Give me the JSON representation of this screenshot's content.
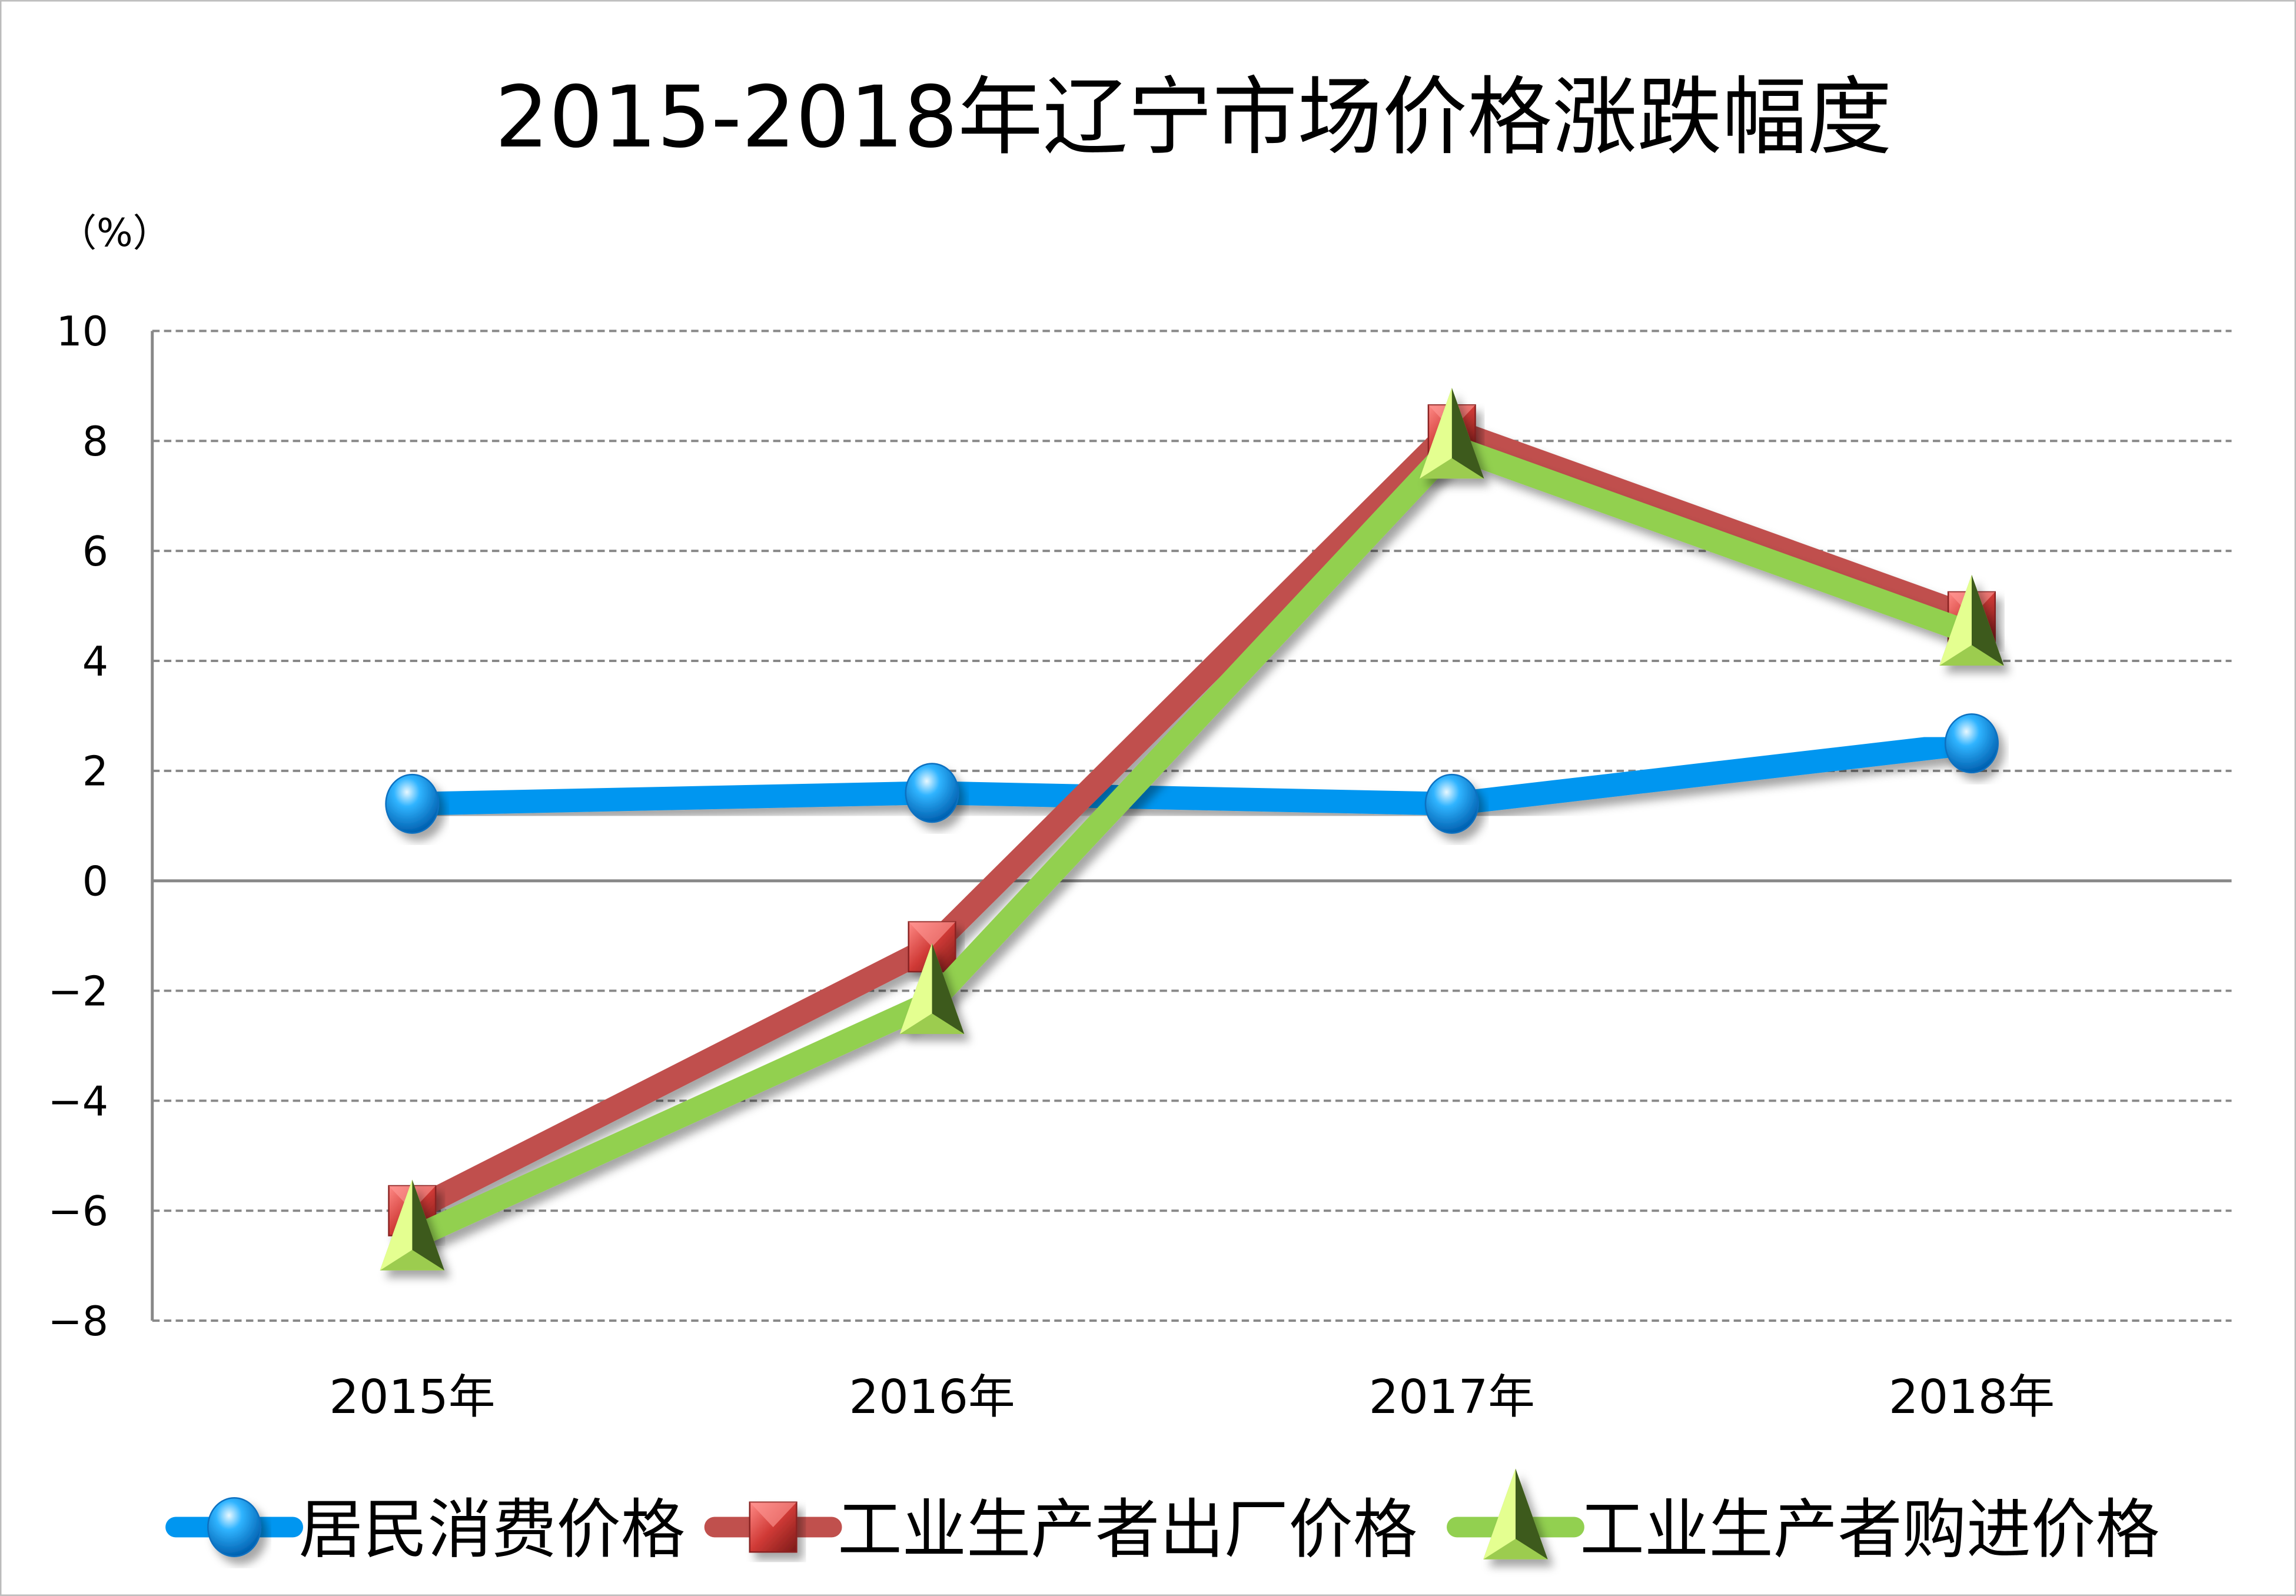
{
  "chart_data": {
    "type": "line",
    "title": "2015-2018年辽宁市场价格涨跌幅度",
    "ylabel": "（%）",
    "xlabel": "",
    "categories": [
      "2015年",
      "2016年",
      "2017年",
      "2018年"
    ],
    "ylim": [
      -8,
      10
    ],
    "yticks": [
      10,
      8,
      6,
      4,
      2,
      0,
      -2,
      -4,
      -6,
      -8
    ],
    "ytick_labels": [
      "10",
      "8",
      "6",
      "4",
      "2",
      "0",
      "−2",
      "−4",
      "−6",
      "−8"
    ],
    "grid": true,
    "legend_position": "bottom",
    "series": [
      {
        "name": "居民消费价格",
        "values": [
          1.4,
          1.6,
          1.4,
          2.5
        ],
        "color": "#0096f0",
        "marker": "circle"
      },
      {
        "name": "工业生产者出厂价格",
        "values": [
          -6.0,
          -1.2,
          8.2,
          4.8
        ],
        "color": "#c0504d",
        "marker": "square"
      },
      {
        "name": "工业生产者购进价格",
        "values": [
          -6.5,
          -2.2,
          7.9,
          4.5
        ],
        "color": "#92d050",
        "marker": "triangle"
      }
    ]
  }
}
